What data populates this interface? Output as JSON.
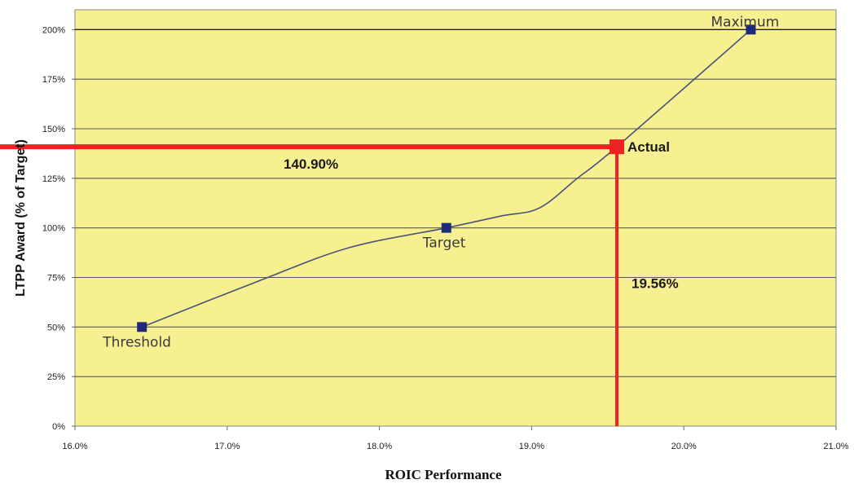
{
  "chart_data": {
    "type": "line",
    "title": "",
    "xlabel": "ROIC Performance",
    "ylabel": "LTPP Award (% of Target)",
    "xlim": [
      16.0,
      21.0
    ],
    "ylim": [
      0,
      210
    ],
    "x_ticks": [
      16.0,
      17.0,
      18.0,
      19.0,
      20.0,
      21.0
    ],
    "x_tick_labels": [
      "16.0%",
      "17.0%",
      "18.0%",
      "19.0%",
      "20.0%",
      "21.0%"
    ],
    "y_ticks": [
      0,
      25,
      50,
      75,
      100,
      125,
      150,
      175,
      200
    ],
    "y_tick_labels": [
      "0%",
      "25%",
      "50%",
      "75%",
      "100%",
      "125%",
      "150%",
      "175%",
      "200%"
    ],
    "grid": "horizontal",
    "background_color": "#f7f091",
    "line_color": "#4a5278",
    "marker_color": "#1f2a7a",
    "highlight_color": "#ee2222",
    "series": [
      {
        "x": [
          16.44,
          17.2,
          17.8,
          18.44,
          18.8,
          19.05,
          19.3,
          19.56,
          20.44
        ],
        "y": [
          50,
          73,
          90,
          100,
          106,
          110,
          125,
          140.9,
          200
        ]
      }
    ],
    "markers": [
      {
        "label": "Threshold",
        "x": 16.44,
        "y": 50
      },
      {
        "label": "Target",
        "x": 18.44,
        "y": 100
      },
      {
        "label": "Maximum",
        "x": 20.44,
        "y": 200
      }
    ],
    "actual": {
      "label": "Actual",
      "x": 19.56,
      "y": 140.9,
      "x_text": "19.56%",
      "y_text": "140.90%"
    }
  }
}
